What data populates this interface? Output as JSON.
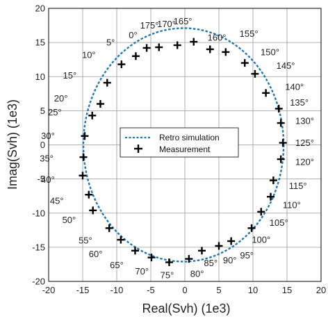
{
  "chart_data": {
    "type": "scatter",
    "xlabel": "Real(Svh) (1e3)",
    "ylabel": "Imag(Svh) (1e3)",
    "xlim": [
      -20,
      20
    ],
    "ylim": [
      -20,
      20
    ],
    "xticks": [
      "-20",
      "-15",
      "-10",
      "-5",
      "0",
      "5",
      "10",
      "15",
      "20"
    ],
    "yticks": [
      "-20",
      "-15",
      "-10",
      "-5",
      "0",
      "5",
      "10",
      "15",
      "20"
    ],
    "grid": true,
    "legend": {
      "position": "center",
      "entries": [
        "Retro simulation",
        "Measurement"
      ]
    },
    "series": [
      {
        "name": "Retro simulation",
        "style": "dashed-line",
        "color": "#1f77b4",
        "ellipse": {
          "cx": -0.2,
          "cy": 0,
          "rx": 14.7,
          "ry": 17.1
        }
      },
      {
        "name": "Measurement",
        "style": "plus-marker",
        "color": "#000000",
        "points": [
          [
            1.3,
            15.1
          ],
          [
            3.7,
            14.0
          ],
          [
            6.0,
            13.6
          ],
          [
            8.8,
            12.0
          ],
          [
            10.3,
            10.4
          ],
          [
            11.9,
            7.6
          ],
          [
            13.8,
            5.3
          ],
          [
            14.1,
            3.2
          ],
          [
            14.4,
            0.3
          ],
          [
            14.1,
            -2.1
          ],
          [
            13.0,
            -5.2
          ],
          [
            12.6,
            -7.6
          ],
          [
            11.2,
            -9.8
          ],
          [
            9.8,
            -12.2
          ],
          [
            6.8,
            -14.1
          ],
          [
            5.0,
            -14.8
          ],
          [
            2.5,
            -15.5
          ],
          [
            0.6,
            -16.7
          ],
          [
            -2.3,
            -17.2
          ],
          [
            -4.9,
            -16.5
          ],
          [
            -7.3,
            -15.5
          ],
          [
            -9.4,
            -13.9
          ],
          [
            -11.1,
            -12.2
          ],
          [
            -13.5,
            -9.6
          ],
          [
            -14.1,
            -7.3
          ],
          [
            -15.0,
            -4.5
          ],
          [
            -14.9,
            -1.8
          ],
          [
            -14.7,
            1.3
          ],
          [
            -13.6,
            4.3
          ],
          [
            -12.4,
            6.0
          ],
          [
            -11.4,
            9.1
          ],
          [
            -9.3,
            11.8
          ],
          [
            -7.2,
            13.0
          ],
          [
            -5.6,
            14.2
          ],
          [
            -3.8,
            14.3
          ],
          [
            -1.1,
            14.6
          ]
        ]
      }
    ],
    "annotations": [
      {
        "text": "165°",
        "x": -0.3,
        "y": 18.1
      },
      {
        "text": "170°",
        "x": -2.7,
        "y": 17.7
      },
      {
        "text": "175°",
        "x": -5.2,
        "y": 17.5
      },
      {
        "text": "0°",
        "x": -7.6,
        "y": 16.1
      },
      {
        "text": "5°",
        "x": -10.9,
        "y": 15.0
      },
      {
        "text": "10°",
        "x": -14.1,
        "y": 13.2
      },
      {
        "text": "15°",
        "x": -16.9,
        "y": 10.2
      },
      {
        "text": "20°",
        "x": -18.2,
        "y": 6.8
      },
      {
        "text": "25°",
        "x": -19.1,
        "y": 4.8
      },
      {
        "text": "30°",
        "x": -20.1,
        "y": 1.3
      },
      {
        "text": "35°",
        "x": -20.3,
        "y": -2.0
      },
      {
        "text": "40°",
        "x": -20.1,
        "y": -5.1
      },
      {
        "text": "45°",
        "x": -18.8,
        "y": -8.2
      },
      {
        "text": "50°",
        "x": -17.0,
        "y": -11.0
      },
      {
        "text": "55°",
        "x": -14.6,
        "y": -14.0
      },
      {
        "text": "60°",
        "x": -13.1,
        "y": -16.0
      },
      {
        "text": "65°",
        "x": -10.0,
        "y": -17.6
      },
      {
        "text": "70°",
        "x": -6.3,
        "y": -18.5
      },
      {
        "text": "75°",
        "x": -2.6,
        "y": -19.1
      },
      {
        "text": "80°",
        "x": 1.8,
        "y": -18.9
      },
      {
        "text": "85°",
        "x": 3.8,
        "y": -17.3
      },
      {
        "text": "90°",
        "x": 6.6,
        "y": -16.9
      },
      {
        "text": "95°",
        "x": 9.1,
        "y": -16.2
      },
      {
        "text": "100°",
        "x": 11.2,
        "y": -13.9
      },
      {
        "text": "105°",
        "x": 13.8,
        "y": -11.4
      },
      {
        "text": "110°",
        "x": 15.7,
        "y": -8.8
      },
      {
        "text": "115°",
        "x": 16.6,
        "y": -6.0
      },
      {
        "text": "120°",
        "x": 17.6,
        "y": -2.5
      },
      {
        "text": "125°",
        "x": 17.6,
        "y": 0.3
      },
      {
        "text": "130°",
        "x": 17.6,
        "y": 3.5
      },
      {
        "text": "135°",
        "x": 16.8,
        "y": 6.2
      },
      {
        "text": "140°",
        "x": 16.1,
        "y": 8.5
      },
      {
        "text": "145°",
        "x": 14.8,
        "y": 11.6
      },
      {
        "text": "150°",
        "x": 12.5,
        "y": 13.6
      },
      {
        "text": "155°",
        "x": 9.4,
        "y": 16.3
      },
      {
        "text": "160°",
        "x": 4.7,
        "y": 15.7
      }
    ]
  }
}
